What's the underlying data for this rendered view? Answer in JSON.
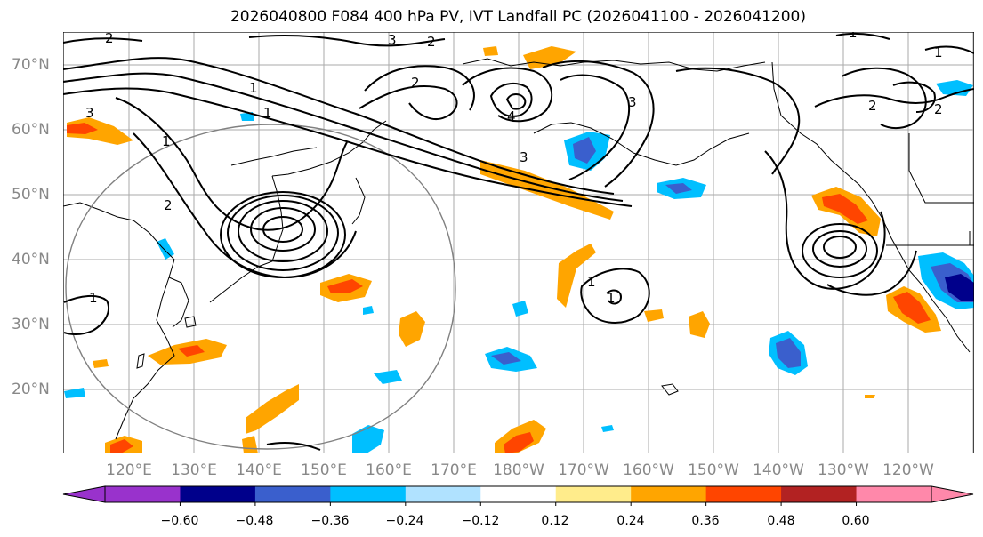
{
  "title": "2026040800 F084 400 hPa PV, IVT Landfall PC (2026041100 - 2026041200)",
  "chart_data": {
    "type": "map",
    "lat_labels": [
      "70°N",
      "60°N",
      "50°N",
      "40°N",
      "30°N",
      "20°N"
    ],
    "lon_labels": [
      "120°E",
      "130°E",
      "140°E",
      "150°E",
      "160°E",
      "170°E",
      "180°W",
      "170°W",
      "160°W",
      "150°W",
      "140°W",
      "130°W",
      "120°W"
    ],
    "colorbar": {
      "ticks": [
        "−0.60",
        "−0.48",
        "−0.36",
        "−0.24",
        "−0.12",
        "0.12",
        "0.24",
        "0.36",
        "0.48",
        "0.60"
      ],
      "colors": [
        "#9932cc",
        "#00008b",
        "#3a5fcd",
        "#00bfff",
        "#b0e2ff",
        "#ffffff",
        "#ffec8b",
        "#ffa500",
        "#ff4500",
        "#b22222",
        "#ff88aa"
      ]
    },
    "contour_labels": [
      "1",
      "1",
      "1",
      "2",
      "2",
      "2",
      "2",
      "3",
      "3",
      "3",
      "4",
      "1",
      "1",
      "1",
      "2",
      "2",
      "3",
      "1",
      "1"
    ]
  }
}
